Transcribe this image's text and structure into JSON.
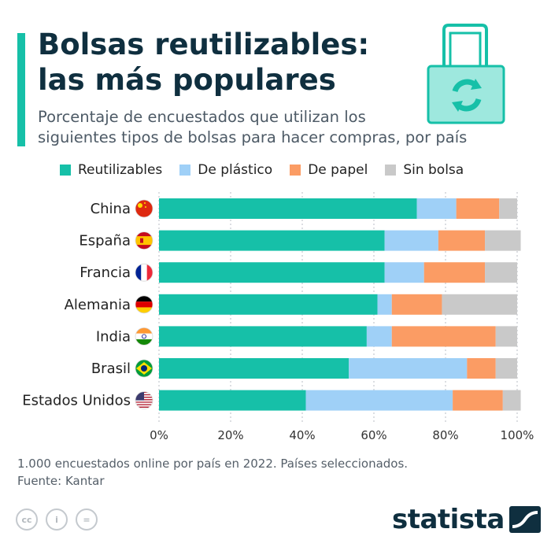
{
  "header": {
    "title_line1": "Bolsas reutilizables:",
    "title_line2": "las más populares",
    "subtitle_line1": "Porcentaje de encuestados que utilizan los",
    "subtitle_line2": "siguientes tipos de bolsas para hacer compras, por país"
  },
  "colors": {
    "accent": "#16c0a8",
    "reutilizables": "#16c0a8",
    "plastico": "#9fd0f7",
    "papel": "#fb9c64",
    "sin_bolsa": "#c9c9c9"
  },
  "icons": [
    "reusable-bag-icon",
    "flag-icons",
    "creative-commons-icons",
    "statista-logo"
  ],
  "chart_data": {
    "type": "bar",
    "orientation": "horizontal",
    "stacked": true,
    "categories": [
      "China",
      "España",
      "Francia",
      "Alemania",
      "India",
      "Brasil",
      "Estados Unidos"
    ],
    "series": [
      {
        "name": "Reutilizables",
        "values": [
          72,
          63,
          63,
          61,
          58,
          53,
          41
        ]
      },
      {
        "name": "De plástico",
        "values": [
          11,
          15,
          11,
          4,
          7,
          33,
          41
        ]
      },
      {
        "name": "De papel",
        "values": [
          12,
          13,
          17,
          14,
          29,
          8,
          14
        ]
      },
      {
        "name": "Sin bolsa",
        "values": [
          5,
          10,
          9,
          21,
          6,
          6,
          5
        ]
      }
    ],
    "xlim": [
      0,
      100
    ],
    "xticks": [
      "0%",
      "20%",
      "40%",
      "60%",
      "80%",
      "100%"
    ],
    "legend_position": "top",
    "grid": "vertical dashed"
  },
  "footer": {
    "note": "1.000 encuestados online por país en 2022. Países seleccionados.",
    "source": "Fuente: Kantar",
    "cc_labels": [
      "cc",
      "i",
      "="
    ],
    "brand": "statista"
  }
}
